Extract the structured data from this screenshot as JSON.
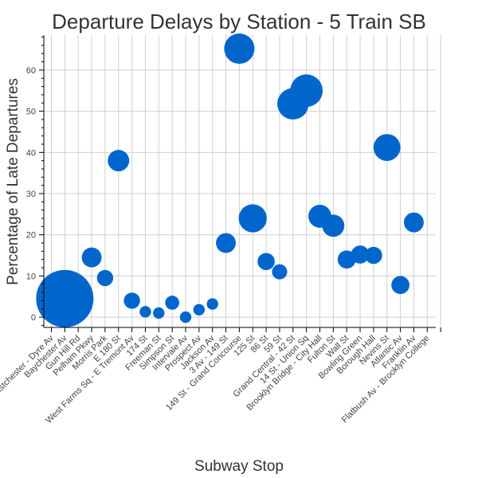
{
  "chart_data": {
    "type": "scatter",
    "title": "Departure Delays by Station - 5 Train SB",
    "xlabel": "Subway Stop",
    "ylabel": "Percentage of Late Departures",
    "ylim": [
      -2.5,
      68.5
    ],
    "yticks": [
      0,
      10,
      20,
      30,
      40,
      50,
      60
    ],
    "grid": true,
    "marker_color": "#0066CC",
    "categories": [
      "Eastchester - Dyre Av",
      "Baychester Av",
      "Gun Hill Rd",
      "Pelham Pkwy",
      "Morris Park",
      "E 180 St",
      "West Farms Sq - E Tremont Av",
      "174 St",
      "Freeman St",
      "Simpson St",
      "Intervale Av",
      "Prospect Av",
      "Jackson Av",
      "3 Av - 149 St",
      "149 St - Grand Concourse",
      "125 St",
      "86 St",
      "59 St",
      "Grand Central - 42 St",
      "14 St - Union Sq",
      "Brooklyn Bridge - City Hall",
      "Fulton St",
      "Wall St",
      "Bowling Green",
      "Borough Hall",
      "Nevins St",
      "Atlantic Av",
      "Franklin Av",
      "Flatbush Av - Brooklyn College"
    ],
    "points": [
      {
        "x": "Baychester Av",
        "y": 4.5,
        "size": 100
      },
      {
        "x": "Pelham Pkwy",
        "y": 14.5,
        "size": 12
      },
      {
        "x": "Morris Park",
        "y": 9.5,
        "size": 8
      },
      {
        "x": "E 180 St",
        "y": 38.0,
        "size": 14
      },
      {
        "x": "West Farms Sq - E Tremont Av",
        "y": 4.0,
        "size": 8
      },
      {
        "x": "174 St",
        "y": 1.3,
        "size": 4
      },
      {
        "x": "Freeman St",
        "y": 1.0,
        "size": 4
      },
      {
        "x": "Simpson St",
        "y": 3.5,
        "size": 6
      },
      {
        "x": "Intervale Av",
        "y": 0.0,
        "size": 4
      },
      {
        "x": "Prospect Av",
        "y": 1.8,
        "size": 4
      },
      {
        "x": "Jackson Av",
        "y": 3.2,
        "size": 4
      },
      {
        "x": "3 Av - 149 St",
        "y": 18.0,
        "size": 12
      },
      {
        "x": "149 St - Grand Concourse",
        "y": 65.2,
        "size": 28
      },
      {
        "x": "125 St",
        "y": 24.0,
        "size": 24
      },
      {
        "x": "86 St",
        "y": 13.5,
        "size": 9
      },
      {
        "x": "59 St",
        "y": 11.0,
        "size": 7
      },
      {
        "x": "Grand Central - 42 St",
        "y": 51.8,
        "size": 30
      },
      {
        "x": "14 St - Union Sq",
        "y": 55.0,
        "size": 32
      },
      {
        "x": "Brooklyn Bridge - City Hall",
        "y": 24.5,
        "size": 16
      },
      {
        "x": "Fulton St",
        "y": 22.2,
        "size": 15
      },
      {
        "x": "Wall St",
        "y": 14.0,
        "size": 10
      },
      {
        "x": "Bowling Green",
        "y": 15.2,
        "size": 10
      },
      {
        "x": "Borough Hall",
        "y": 15.0,
        "size": 9
      },
      {
        "x": "Nevins St",
        "y": 41.2,
        "size": 22
      },
      {
        "x": "Atlantic Av",
        "y": 7.8,
        "size": 10
      },
      {
        "x": "Franklin Av",
        "y": 23.0,
        "size": 12
      }
    ]
  }
}
